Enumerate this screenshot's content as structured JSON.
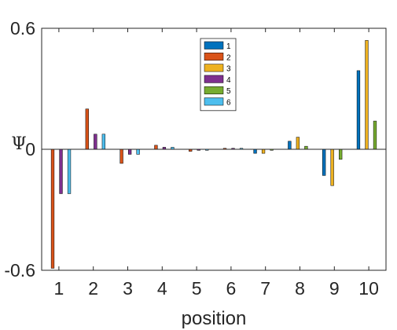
{
  "chart_data": {
    "type": "bar",
    "title": "",
    "xlabel": "position",
    "ylabel": "Ψ",
    "categories": [
      "1",
      "2",
      "3",
      "4",
      "5",
      "6",
      "7",
      "8",
      "9",
      "10"
    ],
    "ylim": [
      -0.6,
      0.6
    ],
    "yticks": [
      {
        "value": -0.6,
        "label": "-0.6"
      },
      {
        "value": 0,
        "label": "0"
      },
      {
        "value": 0.6,
        "label": "0.6"
      }
    ],
    "grid": false,
    "legend_position": "top-center",
    "series": [
      {
        "name": "1",
        "color": "#0072BD",
        "values": [
          0,
          0,
          0,
          0,
          0,
          0,
          -0.02,
          0.04,
          -0.13,
          0.39
        ]
      },
      {
        "name": "2",
        "color": "#D95319",
        "values": [
          -0.59,
          0.2,
          -0.07,
          0.02,
          -0.01,
          0.005,
          0,
          0,
          0,
          0
        ]
      },
      {
        "name": "3",
        "color": "#EDB120",
        "values": [
          0,
          0,
          0,
          0,
          0,
          0,
          -0.02,
          0.06,
          -0.18,
          0.54
        ]
      },
      {
        "name": "4",
        "color": "#7E2F8E",
        "values": [
          -0.22,
          0.075,
          -0.025,
          0.01,
          -0.005,
          0.005,
          0,
          0,
          0,
          0
        ]
      },
      {
        "name": "5",
        "color": "#77AC30",
        "values": [
          0,
          0,
          0,
          0,
          0,
          0,
          -0.005,
          0.015,
          -0.05,
          0.14
        ]
      },
      {
        "name": "6",
        "color": "#4DBEEE",
        "values": [
          -0.22,
          0.075,
          -0.025,
          0.01,
          -0.005,
          0.005,
          0,
          0,
          0,
          0
        ]
      }
    ]
  }
}
